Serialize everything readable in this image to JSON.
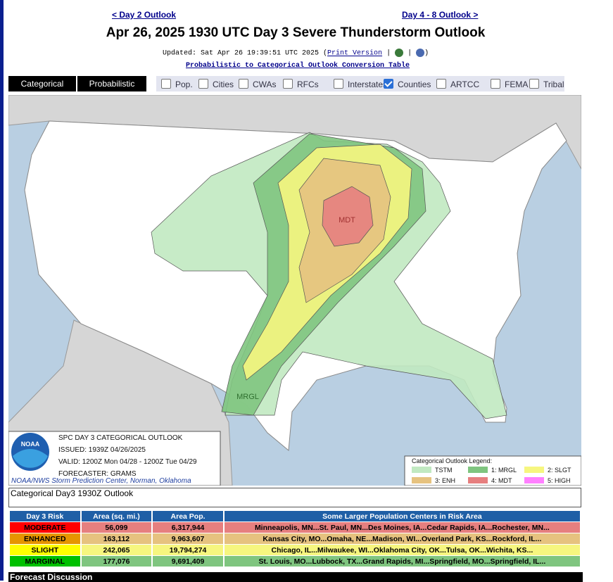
{
  "nav": {
    "prev": "< Day 2 Outlook",
    "next": "Day 4 - 8 Outlook >"
  },
  "title": "Apr 26, 2025 1930 UTC Day 3 Severe Thunderstorm Outlook",
  "updated": {
    "prefix": "Updated: Sat Apr 26 19:39:51 UTC 2025 (",
    "print_link": "Print Version",
    "separator": "|",
    "suffix": ")"
  },
  "conversion_link": "Probabilistic to Categorical Outlook Conversion Table",
  "tabs": [
    "Categorical",
    "Probabilistic"
  ],
  "layers": [
    {
      "label": "Pop.",
      "checked": false
    },
    {
      "label": "Cities",
      "checked": false
    },
    {
      "label": "CWAs",
      "checked": false
    },
    {
      "label": "RFCs",
      "checked": false
    },
    {
      "label": "Interstates",
      "checked": false
    },
    {
      "label": "Counties",
      "checked": true
    },
    {
      "label": "ARTCC",
      "checked": false
    },
    {
      "label": "FEMA",
      "checked": false
    },
    {
      "label": "Tribal",
      "checked": false
    }
  ],
  "map": {
    "labels": [
      "MDT",
      "MRGL"
    ],
    "info": {
      "logo": "NOAA",
      "lines": [
        "SPC DAY 3 CATEGORICAL OUTLOOK",
        "ISSUED: 1939Z 04/26/2025",
        "VALID: 1200Z Mon 04/28 - 1200Z Tue 04/29",
        "FORECASTER: GRAMS"
      ],
      "credit": "NOAA/NWS Storm Prediction Center, Norman, Oklahoma"
    },
    "legend": {
      "title": "Categorical Outlook Legend:",
      "items": [
        {
          "label": "TSTM",
          "color": "#c1e9c1"
        },
        {
          "label": "1: MRGL",
          "color": "#7fc57f"
        },
        {
          "label": "2: SLGT",
          "color": "#f6f67f"
        },
        {
          "label": "3: ENH",
          "color": "#e6c27f"
        },
        {
          "label": "4: MDT",
          "color": "#e67f7f"
        },
        {
          "label": "5: HIGH",
          "color": "#ff80ff"
        }
      ]
    }
  },
  "caption": "Categorical Day3 1930Z Outlook",
  "table": {
    "headers": [
      "Day 3 Risk",
      "Area (sq. mi.)",
      "Area Pop.",
      "Some Larger Population Centers in Risk Area"
    ],
    "rows": [
      {
        "cells": [
          "MODERATE",
          "56,099",
          "6,317,944",
          "Minneapolis, MN...St. Paul, MN...Des Moines, IA...Cedar Rapids, IA...Rochester, MN..."
        ],
        "risk_color": "#ff0000",
        "color": "#e67f7f"
      },
      {
        "cells": [
          "ENHANCED",
          "163,112",
          "9,963,607",
          "Kansas City, MO...Omaha, NE...Madison, WI...Overland Park, KS...Rockford, IL..."
        ],
        "risk_color": "#e69500",
        "color": "#e6c27f"
      },
      {
        "cells": [
          "SLIGHT",
          "242,065",
          "19,794,274",
          "Chicago, IL...Milwaukee, WI...Oklahoma City, OK...Tulsa, OK...Wichita, KS..."
        ],
        "risk_color": "#ffff00",
        "color": "#f6f67f"
      },
      {
        "cells": [
          "MARGINAL",
          "177,076",
          "9,691,409",
          "St. Louis, MO...Lubbock, TX...Grand Rapids, MI...Springfield, MO...Springfield, IL..."
        ],
        "risk_color": "#00c000",
        "color": "#7fc57f"
      }
    ]
  },
  "discussion": "Forecast Discussion"
}
